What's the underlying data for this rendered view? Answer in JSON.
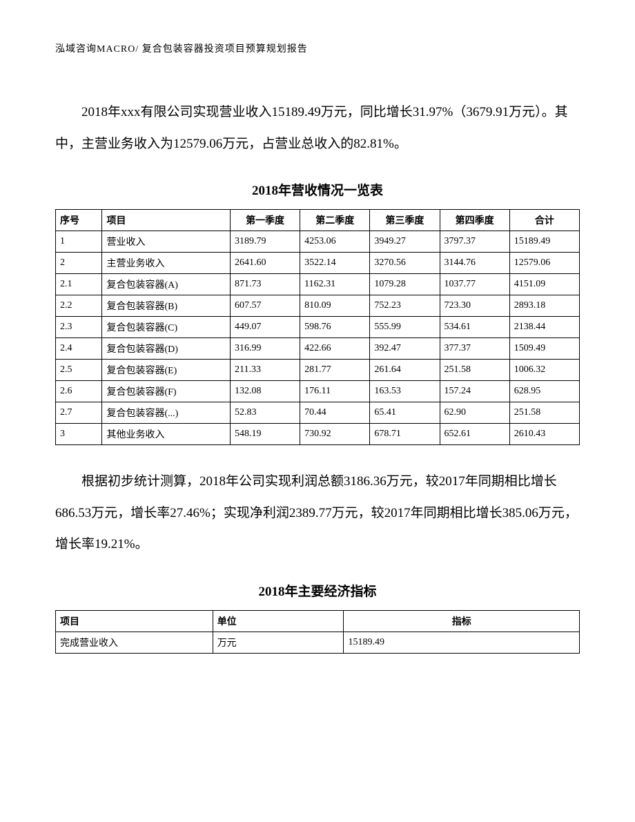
{
  "header": "泓域咨询MACRO/    复合包装容器投资项目预算规划报告",
  "para1": "2018年xxx有限公司实现营业收入15189.49万元，同比增长31.97%（3679.91万元）。其中，主营业务收入为12579.06万元，占营业总收入的82.81%。",
  "table1": {
    "title": "2018年营收情况一览表",
    "headers": [
      "序号",
      "项目",
      "第一季度",
      "第二季度",
      "第三季度",
      "第四季度",
      "合计"
    ],
    "rows": [
      [
        "1",
        "营业收入",
        "3189.79",
        "4253.06",
        "3949.27",
        "3797.37",
        "15189.49"
      ],
      [
        "2",
        "主营业务收入",
        "2641.60",
        "3522.14",
        "3270.56",
        "3144.76",
        "12579.06"
      ],
      [
        "2.1",
        "复合包装容器(A)",
        "871.73",
        "1162.31",
        "1079.28",
        "1037.77",
        "4151.09"
      ],
      [
        "2.2",
        "复合包装容器(B)",
        "607.57",
        "810.09",
        "752.23",
        "723.30",
        "2893.18"
      ],
      [
        "2.3",
        "复合包装容器(C)",
        "449.07",
        "598.76",
        "555.99",
        "534.61",
        "2138.44"
      ],
      [
        "2.4",
        "复合包装容器(D)",
        "316.99",
        "422.66",
        "392.47",
        "377.37",
        "1509.49"
      ],
      [
        "2.5",
        "复合包装容器(E)",
        "211.33",
        "281.77",
        "261.64",
        "251.58",
        "1006.32"
      ],
      [
        "2.6",
        "复合包装容器(F)",
        "132.08",
        "176.11",
        "163.53",
        "157.24",
        "628.95"
      ],
      [
        "2.7",
        "复合包装容器(...)",
        "52.83",
        "70.44",
        "65.41",
        "62.90",
        "251.58"
      ],
      [
        "3",
        "其他业务收入",
        "548.19",
        "730.92",
        "678.71",
        "652.61",
        "2610.43"
      ]
    ]
  },
  "para2": "根据初步统计测算，2018年公司实现利润总额3186.36万元，较2017年同期相比增长686.53万元，增长率27.46%；实现净利润2389.77万元，较2017年同期相比增长385.06万元，增长率19.21%。",
  "table2": {
    "title": "2018年主要经济指标",
    "headers": [
      "项目",
      "单位",
      "指标"
    ],
    "rows": [
      [
        "完成营业收入",
        "万元",
        "15189.49"
      ]
    ]
  }
}
